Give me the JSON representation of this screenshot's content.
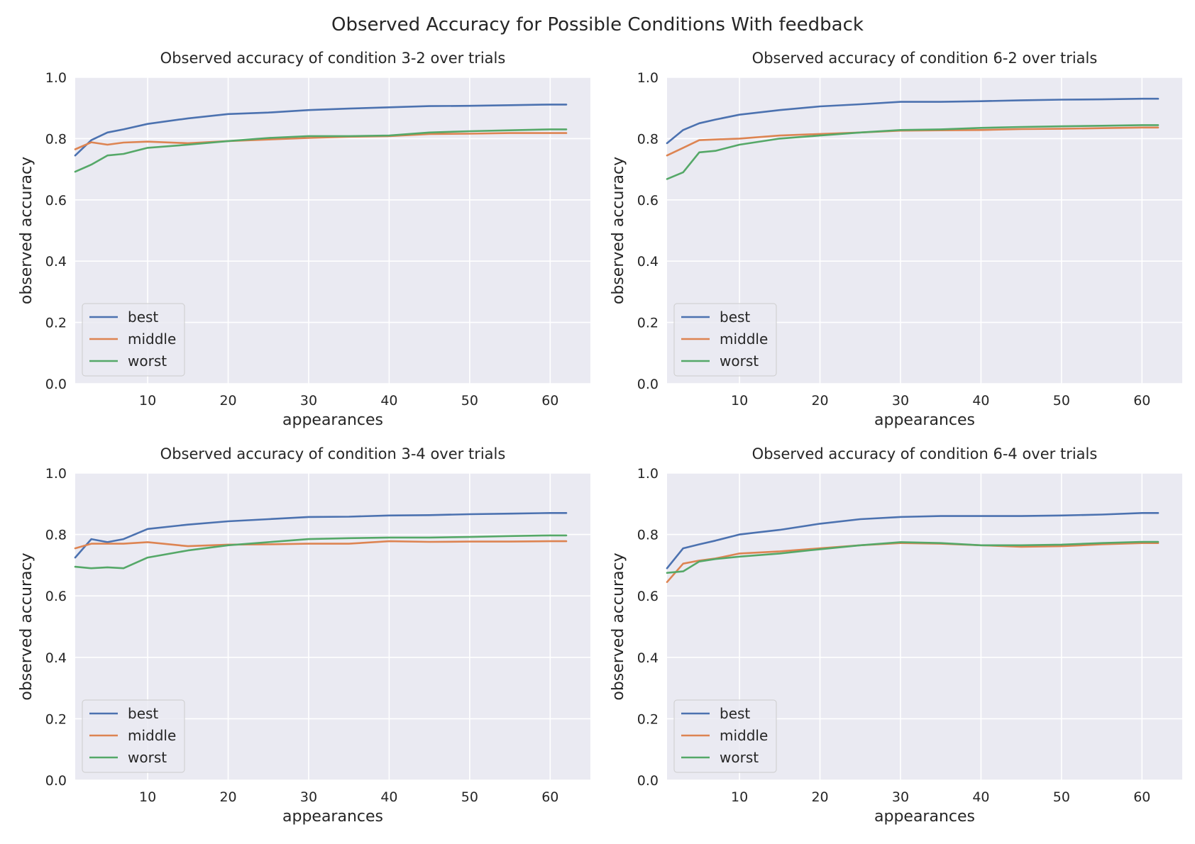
{
  "figure": {
    "suptitle": "Observed Accuracy for Possible Conditions With feedback"
  },
  "colors": {
    "plot_bg": "#eaeaf2",
    "grid": "#ffffff",
    "best": "#4c72b0",
    "middle": "#dd8452",
    "worst": "#55a868"
  },
  "chart_data": [
    {
      "type": "line",
      "title": "Observed accuracy of condition 3-2 over trials",
      "xlabel": "appearances",
      "ylabel": "observed accuracy",
      "xlim": [
        1,
        65
      ],
      "ylim": [
        0,
        1
      ],
      "xticks": [
        "10",
        "20",
        "30",
        "40",
        "50",
        "60"
      ],
      "yticks": [
        "0.0",
        "0.2",
        "0.4",
        "0.6",
        "0.8",
        "1.0"
      ],
      "grid": true,
      "legend": "lower-left",
      "x": [
        1,
        3,
        5,
        7,
        10,
        15,
        20,
        25,
        30,
        35,
        40,
        45,
        50,
        55,
        60,
        62
      ],
      "series": [
        {
          "name": "best",
          "values": [
            0.745,
            0.795,
            0.82,
            0.83,
            0.848,
            0.866,
            0.88,
            0.885,
            0.893,
            0.898,
            0.902,
            0.906,
            0.907,
            0.909,
            0.911,
            0.911
          ]
        },
        {
          "name": "middle",
          "values": [
            0.765,
            0.788,
            0.78,
            0.787,
            0.79,
            0.785,
            0.792,
            0.797,
            0.802,
            0.806,
            0.808,
            0.815,
            0.816,
            0.818,
            0.818,
            0.818
          ]
        },
        {
          "name": "worst",
          "values": [
            0.692,
            0.715,
            0.745,
            0.75,
            0.77,
            0.78,
            0.792,
            0.802,
            0.808,
            0.808,
            0.81,
            0.82,
            0.824,
            0.827,
            0.83,
            0.83
          ]
        }
      ]
    },
    {
      "type": "line",
      "title": "Observed accuracy of condition 6-2 over trials",
      "xlabel": "appearances",
      "ylabel": "observed accuracy",
      "xlim": [
        1,
        65
      ],
      "ylim": [
        0,
        1
      ],
      "xticks": [
        "10",
        "20",
        "30",
        "40",
        "50",
        "60"
      ],
      "yticks": [
        "0.0",
        "0.2",
        "0.4",
        "0.6",
        "0.8",
        "1.0"
      ],
      "grid": true,
      "legend": "lower-left",
      "x": [
        1,
        3,
        5,
        7,
        10,
        15,
        20,
        25,
        30,
        35,
        40,
        45,
        50,
        55,
        60,
        62
      ],
      "series": [
        {
          "name": "best",
          "values": [
            0.785,
            0.828,
            0.85,
            0.862,
            0.878,
            0.893,
            0.905,
            0.912,
            0.92,
            0.92,
            0.922,
            0.925,
            0.927,
            0.928,
            0.93,
            0.93
          ]
        },
        {
          "name": "middle",
          "values": [
            0.745,
            0.77,
            0.795,
            0.797,
            0.8,
            0.81,
            0.815,
            0.82,
            0.826,
            0.827,
            0.828,
            0.831,
            0.832,
            0.834,
            0.836,
            0.836
          ]
        },
        {
          "name": "worst",
          "values": [
            0.668,
            0.69,
            0.755,
            0.76,
            0.78,
            0.8,
            0.81,
            0.82,
            0.828,
            0.83,
            0.835,
            0.838,
            0.84,
            0.842,
            0.844,
            0.844
          ]
        }
      ]
    },
    {
      "type": "line",
      "title": "Observed accuracy of condition 3-4 over trials",
      "xlabel": "appearances",
      "ylabel": "observed accuracy",
      "xlim": [
        1,
        65
      ],
      "ylim": [
        0,
        1
      ],
      "xticks": [
        "10",
        "20",
        "30",
        "40",
        "50",
        "60"
      ],
      "yticks": [
        "0.0",
        "0.2",
        "0.4",
        "0.6",
        "0.8",
        "1.0"
      ],
      "grid": true,
      "legend": "lower-left",
      "x": [
        1,
        3,
        5,
        7,
        10,
        15,
        20,
        25,
        30,
        35,
        40,
        45,
        50,
        55,
        60,
        62
      ],
      "series": [
        {
          "name": "best",
          "values": [
            0.725,
            0.785,
            0.775,
            0.785,
            0.818,
            0.832,
            0.843,
            0.85,
            0.857,
            0.858,
            0.862,
            0.863,
            0.866,
            0.868,
            0.87,
            0.87
          ]
        },
        {
          "name": "middle",
          "values": [
            0.755,
            0.77,
            0.77,
            0.77,
            0.775,
            0.762,
            0.767,
            0.768,
            0.77,
            0.77,
            0.778,
            0.776,
            0.777,
            0.777,
            0.778,
            0.778
          ]
        },
        {
          "name": "worst",
          "values": [
            0.695,
            0.69,
            0.693,
            0.69,
            0.725,
            0.748,
            0.765,
            0.775,
            0.785,
            0.788,
            0.79,
            0.79,
            0.792,
            0.795,
            0.797,
            0.797
          ]
        }
      ]
    },
    {
      "type": "line",
      "title": "Observed accuracy of condition 6-4 over trials",
      "xlabel": "appearances",
      "ylabel": "observed accuracy",
      "xlim": [
        1,
        65
      ],
      "ylim": [
        0,
        1
      ],
      "xticks": [
        "10",
        "20",
        "30",
        "40",
        "50",
        "60"
      ],
      "yticks": [
        "0.0",
        "0.2",
        "0.4",
        "0.6",
        "0.8",
        "1.0"
      ],
      "grid": true,
      "legend": "lower-left",
      "x": [
        1,
        3,
        5,
        7,
        10,
        15,
        20,
        25,
        30,
        35,
        40,
        45,
        50,
        55,
        60,
        62
      ],
      "series": [
        {
          "name": "best",
          "values": [
            0.69,
            0.755,
            0.768,
            0.78,
            0.8,
            0.815,
            0.835,
            0.85,
            0.857,
            0.86,
            0.86,
            0.86,
            0.862,
            0.865,
            0.87,
            0.87
          ]
        },
        {
          "name": "middle",
          "values": [
            0.645,
            0.705,
            0.715,
            0.722,
            0.738,
            0.745,
            0.755,
            0.765,
            0.772,
            0.77,
            0.765,
            0.76,
            0.762,
            0.768,
            0.772,
            0.772
          ]
        },
        {
          "name": "worst",
          "values": [
            0.675,
            0.68,
            0.712,
            0.72,
            0.728,
            0.738,
            0.752,
            0.765,
            0.775,
            0.772,
            0.765,
            0.765,
            0.767,
            0.772,
            0.776,
            0.776
          ]
        }
      ]
    }
  ]
}
